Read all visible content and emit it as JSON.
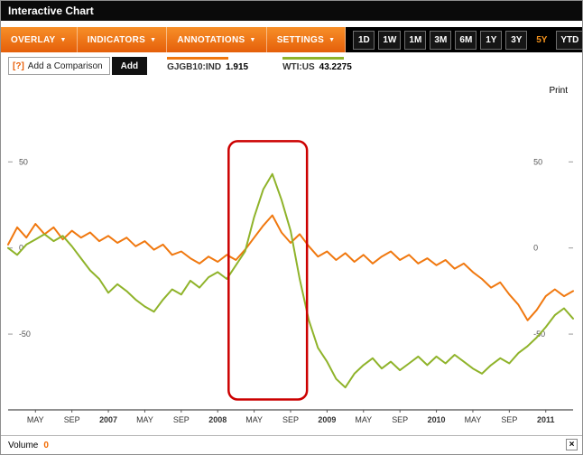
{
  "window": {
    "title": "Interactive Chart"
  },
  "menu": {
    "dropdown_glyph": "▼",
    "items": [
      {
        "label": "OVERLAY"
      },
      {
        "label": "INDICATORS"
      },
      {
        "label": "ANNOTATIONS"
      },
      {
        "label": "SETTINGS"
      }
    ]
  },
  "ranges": {
    "selected": "5Y",
    "buttons": [
      {
        "label": "1D"
      },
      {
        "label": "1W"
      },
      {
        "label": "1M"
      },
      {
        "label": "3M"
      },
      {
        "label": "6M"
      },
      {
        "label": "1Y"
      },
      {
        "label": "3Y"
      },
      {
        "label": "5Y"
      },
      {
        "label": "YTD"
      }
    ]
  },
  "comparison": {
    "help_glyph": "[?]",
    "label": "Add a Comparison",
    "add_label": "Add"
  },
  "legend": [
    {
      "ticker": "GJGB10:IND",
      "value": "1.915",
      "color": "#f0780f"
    },
    {
      "ticker": "WTI:US",
      "value": "43.2275",
      "color": "#8fb32a"
    }
  ],
  "print_label": "Print",
  "volume": {
    "label": "Volume",
    "value": "0",
    "close_glyph": "×"
  },
  "chart_data": {
    "type": "line",
    "title": "Interactive Chart",
    "x_start": "2006-02",
    "x_end": "2011-04",
    "frequency": "monthly",
    "x_tick_labels": [
      "MAY",
      "SEP",
      "2007",
      "MAY",
      "SEP",
      "2008",
      "MAY",
      "SEP",
      "2009",
      "MAY",
      "SEP",
      "2010",
      "MAY",
      "SEP",
      "2011"
    ],
    "x_tick_indices": [
      3,
      7,
      11,
      15,
      19,
      23,
      27,
      31,
      35,
      39,
      43,
      47,
      51,
      55,
      59
    ],
    "y_ticks": [
      50,
      0,
      -50
    ],
    "ylim": [
      -94,
      79
    ],
    "grid": false,
    "y_axis_side": "both",
    "legend_position": "top-left",
    "series": [
      {
        "name": "GJGB10:IND",
        "last_value": "1.915",
        "color": "#f0780f",
        "values": [
          2,
          12,
          6,
          14,
          8,
          12,
          5,
          10,
          6,
          9,
          4,
          7,
          3,
          6,
          1,
          4,
          -1,
          2,
          -4,
          -2,
          -6,
          -9,
          -5,
          -8,
          -4,
          -7,
          -1,
          6,
          13,
          19,
          9,
          3,
          8,
          1,
          -5,
          -2,
          -7,
          -3,
          -8,
          -4,
          -9,
          -5,
          -2,
          -7,
          -4,
          -9,
          -6,
          -10,
          -7,
          -12,
          -9,
          -14,
          -18,
          -23,
          -20,
          -27,
          -33,
          -42,
          -36,
          -28,
          -24,
          -28,
          -25
        ]
      },
      {
        "name": "WTI:US",
        "last_value": "43.2275",
        "color": "#8fb32a",
        "values": [
          0,
          -4,
          2,
          5,
          8,
          4,
          7,
          1,
          -6,
          -13,
          -18,
          -26,
          -21,
          -25,
          -30,
          -34,
          -37,
          -30,
          -24,
          -27,
          -19,
          -23,
          -17,
          -14,
          -18,
          -10,
          -2,
          18,
          34,
          43,
          28,
          10,
          -18,
          -42,
          -58,
          -66,
          -76,
          -81,
          -73,
          -68,
          -64,
          -70,
          -66,
          -71,
          -67,
          -63,
          -68,
          -63,
          -67,
          -62,
          -66,
          -70,
          -73,
          -68,
          -64,
          -67,
          -61,
          -57,
          -52,
          -46,
          -39,
          -35,
          -41
        ]
      }
    ],
    "annotation": {
      "type": "rounded-rect",
      "color": "#cc0000",
      "x_start_index": 24.2,
      "x_end_index": 32.8,
      "y_top_value": 62,
      "y_bottom_value": -88,
      "note": "red rounded rectangle highlighting the May-Sep 2008 spike"
    }
  }
}
